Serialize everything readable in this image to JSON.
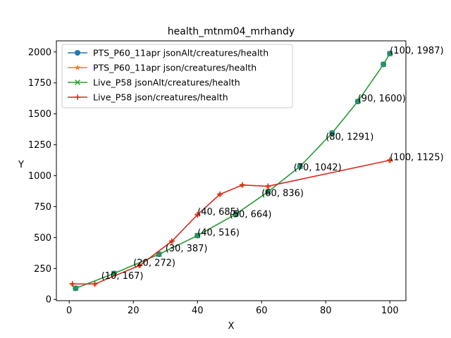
{
  "chart_data": {
    "type": "line",
    "title": "health_mtnm04_mrhandy",
    "xlabel": "X",
    "ylabel": "Y",
    "xlim": [
      -4,
      105
    ],
    "ylim": [
      -10,
      2090
    ],
    "xticks": [
      0,
      20,
      40,
      60,
      80,
      100
    ],
    "yticks": [
      0,
      250,
      500,
      750,
      1000,
      1250,
      1500,
      1750,
      2000
    ],
    "grid": false,
    "legend_position": "top-left",
    "series": [
      {
        "name": "PTS_P60_11apr jsonAlt/creatures/health",
        "color": "#1f77b4",
        "marker": "circle",
        "x": [
          2,
          14,
          28,
          40,
          52,
          62,
          72,
          82,
          90,
          98,
          100
        ],
        "y": [
          90,
          210,
          365,
          516,
          690,
          870,
          1075,
          1345,
          1600,
          1900,
          1987
        ]
      },
      {
        "name": "PTS_P60_11apr json/creatures/health",
        "color": "#ff7f0e",
        "marker": "star",
        "x": [
          1,
          8,
          22,
          32,
          40,
          47,
          54,
          62,
          100
        ],
        "y": [
          125,
          125,
          275,
          470,
          685,
          850,
          925,
          915,
          1125
        ]
      },
      {
        "name": "Live_P58 jsonAlt/creatures/health",
        "color": "#2ca02c",
        "marker": "x",
        "x": [
          2,
          14,
          28,
          40,
          52,
          62,
          72,
          82,
          90,
          98,
          100
        ],
        "y": [
          90,
          210,
          365,
          516,
          690,
          870,
          1075,
          1345,
          1600,
          1900,
          1987
        ]
      },
      {
        "name": "Live_P58 json/creatures/health",
        "color": "#d62728",
        "marker": "plus",
        "x": [
          1,
          8,
          22,
          32,
          40,
          47,
          54,
          62,
          100
        ],
        "y": [
          125,
          125,
          275,
          470,
          685,
          850,
          925,
          915,
          1125
        ]
      }
    ],
    "annotations": [
      {
        "text": "(10, 167)",
        "x": 10,
        "y": 167
      },
      {
        "text": "(20, 272)",
        "x": 20,
        "y": 272
      },
      {
        "text": "(30, 387)",
        "x": 30,
        "y": 387
      },
      {
        "text": "(40, 516)",
        "x": 40,
        "y": 516
      },
      {
        "text": "(40, 685)",
        "x": 40,
        "y": 685
      },
      {
        "text": "(50, 664)",
        "x": 50,
        "y": 664
      },
      {
        "text": "(60, 836)",
        "x": 60,
        "y": 836
      },
      {
        "text": "(70, 1042)",
        "x": 70,
        "y": 1042
      },
      {
        "text": "(80, 1291)",
        "x": 80,
        "y": 1291
      },
      {
        "text": "(90, 1600)",
        "x": 90,
        "y": 1600
      },
      {
        "text": "(100, 1987)",
        "x": 100,
        "y": 1987
      },
      {
        "text": "(100, 1125)",
        "x": 100,
        "y": 1125
      }
    ]
  }
}
